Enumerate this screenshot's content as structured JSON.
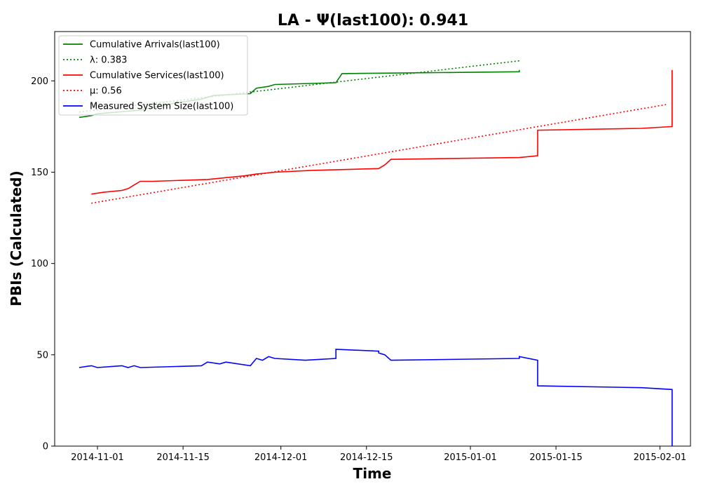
{
  "chart_data": {
    "type": "line",
    "title": "LA -  Ψ(last100): 0.941",
    "xlabel": "Time",
    "ylabel": "PBIs (Calculated)",
    "ylim": [
      0,
      227
    ],
    "xlim": [
      "2014-10-25",
      "2015-02-06"
    ],
    "yticks": [
      0,
      50,
      100,
      150,
      200
    ],
    "xticks": [
      "2014-11-01",
      "2014-11-15",
      "2014-12-01",
      "2014-12-15",
      "2015-01-01",
      "2015-01-15",
      "2015-02-01"
    ],
    "grid": false,
    "legend": {
      "position": "top-left"
    },
    "series": [
      {
        "name": "Cumulative Arrivals(last100)",
        "color": "#008000",
        "style": "solid",
        "points": [
          [
            "2014-10-29",
            180
          ],
          [
            "2014-10-31",
            181
          ],
          [
            "2014-11-01",
            182
          ],
          [
            "2014-11-08",
            184
          ],
          [
            "2014-11-14",
            188
          ],
          [
            "2014-11-18",
            190
          ],
          [
            "2014-11-20",
            192
          ],
          [
            "2014-11-26",
            193
          ],
          [
            "2014-11-27",
            196
          ],
          [
            "2014-11-29",
            197
          ],
          [
            "2014-11-30",
            198
          ],
          [
            "2014-12-10",
            199
          ],
          [
            "2014-12-11",
            204
          ],
          [
            "2015-01-09",
            205
          ],
          [
            "2015-01-09",
            206
          ]
        ]
      },
      {
        "name": "λ: 0.383",
        "color": "#008000",
        "style": "dotted",
        "points": [
          [
            "2014-10-29",
            183
          ],
          [
            "2015-01-09",
            211
          ]
        ]
      },
      {
        "name": "Cumulative Services(last100)",
        "color": "#ff0000",
        "style": "solid",
        "points": [
          [
            "2014-10-31",
            138
          ],
          [
            "2014-11-02",
            139
          ],
          [
            "2014-11-05",
            140
          ],
          [
            "2014-11-06",
            141
          ],
          [
            "2014-11-07",
            143
          ],
          [
            "2014-11-08",
            145
          ],
          [
            "2014-11-10",
            145
          ],
          [
            "2014-11-19",
            146
          ],
          [
            "2014-11-25",
            148
          ],
          [
            "2014-11-27",
            149
          ],
          [
            "2014-11-30",
            150
          ],
          [
            "2014-12-06",
            151
          ],
          [
            "2014-12-17",
            152
          ],
          [
            "2014-12-18",
            154
          ],
          [
            "2014-12-19",
            157
          ],
          [
            "2015-01-09",
            158
          ],
          [
            "2015-01-12",
            159
          ],
          [
            "2015-01-12",
            173
          ],
          [
            "2015-01-29",
            174
          ],
          [
            "2015-02-03",
            175
          ],
          [
            "2015-02-03",
            206
          ]
        ]
      },
      {
        "name": "μ: 0.56",
        "color": "#ff0000",
        "style": "dotted",
        "points": [
          [
            "2014-10-31",
            133
          ],
          [
            "2015-02-02",
            187
          ]
        ]
      },
      {
        "name": "Measured System Size(last100)",
        "color": "#0000ff",
        "style": "solid",
        "points": [
          [
            "2014-10-29",
            43
          ],
          [
            "2014-10-31",
            44
          ],
          [
            "2014-11-01",
            43
          ],
          [
            "2014-11-05",
            44
          ],
          [
            "2014-11-06",
            43
          ],
          [
            "2014-11-07",
            44
          ],
          [
            "2014-11-08",
            43
          ],
          [
            "2014-11-18",
            44
          ],
          [
            "2014-11-19",
            46
          ],
          [
            "2014-11-21",
            45
          ],
          [
            "2014-11-22",
            46
          ],
          [
            "2014-11-26",
            44
          ],
          [
            "2014-11-27",
            48
          ],
          [
            "2014-11-28",
            47
          ],
          [
            "2014-11-29",
            49
          ],
          [
            "2014-11-30",
            48
          ],
          [
            "2014-12-05",
            47
          ],
          [
            "2014-12-10",
            48
          ],
          [
            "2014-12-10",
            53
          ],
          [
            "2014-12-17",
            52
          ],
          [
            "2014-12-17",
            51
          ],
          [
            "2014-12-18",
            50
          ],
          [
            "2014-12-19",
            47
          ],
          [
            "2015-01-09",
            48
          ],
          [
            "2015-01-09",
            49
          ],
          [
            "2015-01-12",
            47
          ],
          [
            "2015-01-12",
            33
          ],
          [
            "2015-01-29",
            32
          ],
          [
            "2015-02-03",
            31
          ],
          [
            "2015-02-03",
            0
          ]
        ]
      }
    ]
  }
}
